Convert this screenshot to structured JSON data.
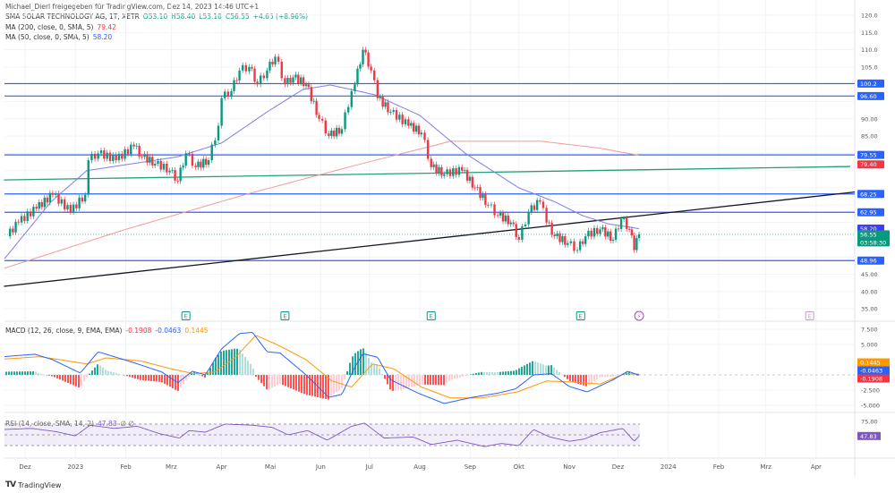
{
  "header": {
    "shared_by": "Michael_Dierl freigegeben für TradingView.com, Dez 14, 2023 14:46 UTC+1",
    "symbol": "SMA SOLAR TECHNOLOGY AG, 1T, XETR",
    "open": "O53.10",
    "high": "H58.40",
    "low": "L53.10",
    "close": "C56.55",
    "change": "+4.65 (+8.96%)",
    "ma200_label": "MA (200, close, 0, SMA, 5)",
    "ma200_value": "79.42",
    "ma50_label": "MA (50, close, 0, SMA, 5)",
    "ma50_value": "58.20"
  },
  "macd_legend": {
    "label": "MACD (12, 26, close, 9, EMA, EMA)",
    "hist": "-0.1908",
    "macd": "-0.0463",
    "signal": "0.1445"
  },
  "rsi_legend": {
    "label": "RSI (14, close, SMA, 14, 2)",
    "value": "47.83",
    "extra": "∅ ∅"
  },
  "footer": {
    "brand": "TradingView",
    "logo": "TV"
  },
  "colors": {
    "up": "#089981",
    "down": "#f23645",
    "ma50": "#7e7ee8",
    "ma200": "#f09a9a",
    "hline": "#2962ff",
    "trend_green": "#22a07a",
    "trend_black": "#131722",
    "macd": "#2962ff",
    "signal": "#ff9800",
    "rsi": "#7e57c2"
  },
  "chart_data": [
    {
      "type": "candlestick",
      "title": "SMA SOLAR TECHNOLOGY AG, 1T, XETR",
      "ylim": [
        35,
        120
      ],
      "yticks": [
        "120.0",
        "115.0",
        "110.0",
        "105.0",
        "100.0",
        "95.00",
        "90.00",
        "85.00",
        "80.00",
        "75.00",
        "70.00",
        "65.00",
        "60.00",
        "55.00",
        "50.00",
        "45.00",
        "40.00",
        "35.00"
      ],
      "xticks": [
        {
          "label": "Dez",
          "date": "2022-12-01"
        },
        {
          "label": "2023",
          "date": "2023-01-01"
        },
        {
          "label": "Feb",
          "date": "2023-02-01"
        },
        {
          "label": "Mrz",
          "date": "2023-03-01"
        },
        {
          "label": "Apr",
          "date": "2023-04-01"
        },
        {
          "label": "Mai",
          "date": "2023-05-01"
        },
        {
          "label": "Jun",
          "date": "2023-06-01"
        },
        {
          "label": "Jul",
          "date": "2023-07-01"
        },
        {
          "label": "Aug",
          "date": "2023-08-01"
        },
        {
          "label": "Sep",
          "date": "2023-09-01"
        },
        {
          "label": "Okt",
          "date": "2023-10-01"
        },
        {
          "label": "Nov",
          "date": "2023-11-01"
        },
        {
          "label": "Dez",
          "date": "2023-12-01"
        },
        {
          "label": "2024",
          "date": "2024-01-01"
        },
        {
          "label": "Feb",
          "date": "2024-02-01"
        },
        {
          "label": "Mrz",
          "date": "2024-03-01"
        },
        {
          "label": "Apr",
          "date": "2024-04-01"
        }
      ],
      "close": [
        [
          "2022-11-20",
          56
        ],
        [
          "2022-11-27",
          60
        ],
        [
          "2022-12-08",
          64
        ],
        [
          "2022-12-18",
          68
        ],
        [
          "2022-12-29",
          63
        ],
        [
          "2023-01-07",
          68
        ],
        [
          "2023-01-09",
          78
        ],
        [
          "2023-01-15",
          80
        ],
        [
          "2023-01-26",
          78
        ],
        [
          "2023-02-06",
          82
        ],
        [
          "2023-02-11",
          79
        ],
        [
          "2023-02-19",
          77
        ],
        [
          "2023-02-28",
          75
        ],
        [
          "2023-03-05",
          72
        ],
        [
          "2023-03-10",
          80
        ],
        [
          "2023-03-16",
          76
        ],
        [
          "2023-03-24",
          78
        ],
        [
          "2023-03-30",
          88
        ],
        [
          "2023-04-01",
          96
        ],
        [
          "2023-04-07",
          98
        ],
        [
          "2023-04-12",
          104
        ],
        [
          "2023-04-18",
          105
        ],
        [
          "2023-04-23",
          100
        ],
        [
          "2023-04-29",
          104
        ],
        [
          "2023-05-04",
          108
        ],
        [
          "2023-05-10",
          100
        ],
        [
          "2023-05-15",
          102
        ],
        [
          "2023-05-23",
          100
        ],
        [
          "2023-05-31",
          90
        ],
        [
          "2023-06-06",
          85
        ],
        [
          "2023-06-14",
          87
        ],
        [
          "2023-06-20",
          98
        ],
        [
          "2023-06-22",
          100
        ],
        [
          "2023-06-27",
          110
        ],
        [
          "2023-07-02",
          104
        ],
        [
          "2023-07-06",
          96
        ],
        [
          "2023-07-14",
          92
        ],
        [
          "2023-07-25",
          88
        ],
        [
          "2023-08-02",
          86
        ],
        [
          "2023-08-08",
          76
        ],
        [
          "2023-08-16",
          74
        ],
        [
          "2023-08-27",
          75
        ],
        [
          "2023-09-04",
          70
        ],
        [
          "2023-09-12",
          65
        ],
        [
          "2023-09-18",
          62
        ],
        [
          "2023-09-26",
          60
        ],
        [
          "2023-10-01",
          55
        ],
        [
          "2023-10-07",
          63
        ],
        [
          "2023-10-14",
          66
        ],
        [
          "2023-10-18",
          60
        ],
        [
          "2023-10-23",
          56
        ],
        [
          "2023-10-31",
          54
        ],
        [
          "2023-11-06",
          52
        ],
        [
          "2023-11-11",
          56
        ],
        [
          "2023-11-20",
          58
        ],
        [
          "2023-11-28",
          55
        ],
        [
          "2023-12-03",
          61
        ],
        [
          "2023-12-08",
          58
        ],
        [
          "2023-12-11",
          52
        ],
        [
          "2023-12-14",
          56.55
        ]
      ],
      "ma200": [
        [
          "2022-11-18",
          46.7
        ],
        [
          "2023-02-01",
          58
        ],
        [
          "2023-04-15",
          68
        ],
        [
          "2023-06-22",
          76.5
        ],
        [
          "2023-08-20",
          83.5
        ],
        [
          "2023-10-15",
          83.5
        ],
        [
          "2023-11-20",
          81.5
        ],
        [
          "2023-12-14",
          79.4
        ]
      ],
      "ma50": [
        [
          "2022-11-18",
          49.3
        ],
        [
          "2022-12-17",
          66
        ],
        [
          "2023-01-08",
          75
        ],
        [
          "2023-03-05",
          79
        ],
        [
          "2023-04-01",
          83
        ],
        [
          "2023-04-29",
          92
        ],
        [
          "2023-05-21",
          98.5
        ],
        [
          "2023-06-07",
          99.8
        ],
        [
          "2023-07-04",
          97
        ],
        [
          "2023-08-01",
          91
        ],
        [
          "2023-08-29",
          80
        ],
        [
          "2023-10-01",
          70
        ],
        [
          "2023-10-23",
          66
        ],
        [
          "2023-11-09",
          62
        ],
        [
          "2023-11-25",
          59.6
        ],
        [
          "2023-12-14",
          58.2
        ]
      ],
      "horizontal_levels": [
        "100.2",
        "96.60",
        "79.55",
        "68.25",
        "62.95",
        "48.96"
      ],
      "trendlines": [
        {
          "color": "green",
          "from": [
            "2022-11-18",
            72.3
          ],
          "to": [
            "2024-04-22",
            76.2
          ]
        },
        {
          "color": "black",
          "from": [
            "2022-11-18",
            41.5
          ],
          "to": [
            "2024-05-08",
            69.5
          ]
        }
      ],
      "price_labels": [
        {
          "value": "100.2",
          "kind": "level"
        },
        {
          "value": "96.60",
          "kind": "level"
        },
        {
          "value": "79.55",
          "kind": "level"
        },
        {
          "value": "79.40",
          "kind": "ma200"
        },
        {
          "value": "68.25",
          "kind": "level"
        },
        {
          "value": "62.95",
          "kind": "level"
        },
        {
          "value": "58.20",
          "kind": "ma50"
        },
        {
          "value": "56.55",
          "kind": "last",
          "countdown": "03:58:30"
        },
        {
          "value": "48.96",
          "kind": "level"
        }
      ],
      "events": [
        {
          "type": "earnings",
          "label": "E",
          "date": "2023-03-10"
        },
        {
          "type": "earnings",
          "label": "E",
          "date": "2023-05-10"
        },
        {
          "type": "earnings",
          "label": "E",
          "date": "2023-08-08"
        },
        {
          "type": "earnings",
          "label": "E",
          "date": "2023-11-08"
        },
        {
          "type": "dividend",
          "label": "⚡",
          "date": "2023-12-14"
        },
        {
          "type": "earnings-future",
          "label": "E",
          "date": "2024-03-28"
        }
      ]
    },
    {
      "type": "line",
      "title": "MACD (12, 26, close, 9, EMA, EMA)",
      "ylim": [
        -6,
        8.5
      ],
      "yticks": [
        "7.500",
        "5.000",
        "-2.500",
        "-5.000"
      ],
      "macd": [
        [
          "2022-11-18",
          3.0
        ],
        [
          "2022-12-07",
          3.4
        ],
        [
          "2022-12-18",
          2.5
        ],
        [
          "2023-01-04",
          0.3
        ],
        [
          "2023-01-15",
          3.8
        ],
        [
          "2023-02-06",
          2.0
        ],
        [
          "2023-02-23",
          0.5
        ],
        [
          "2023-03-05",
          -1.3
        ],
        [
          "2023-03-14",
          0.6
        ],
        [
          "2023-03-22",
          0
        ],
        [
          "2023-04-01",
          4.3
        ],
        [
          "2023-04-12",
          6.8
        ],
        [
          "2023-04-20",
          7.0
        ],
        [
          "2023-04-29",
          3.8
        ],
        [
          "2023-05-07",
          3.6
        ],
        [
          "2023-05-23",
          0
        ],
        [
          "2023-06-06",
          -3.7
        ],
        [
          "2023-06-14",
          -3.2
        ],
        [
          "2023-06-22",
          1.3
        ],
        [
          "2023-06-27",
          3.5
        ],
        [
          "2023-07-06",
          2.9
        ],
        [
          "2023-07-14",
          -0.8
        ],
        [
          "2023-07-31",
          -3.0
        ],
        [
          "2023-08-16",
          -4.7
        ],
        [
          "2023-09-02",
          -3.7
        ],
        [
          "2023-09-18",
          -3.0
        ],
        [
          "2023-09-29",
          -2.3
        ],
        [
          "2023-10-10",
          0
        ],
        [
          "2023-10-21",
          0.2
        ],
        [
          "2023-11-01",
          -1.9
        ],
        [
          "2023-11-12",
          -2.8
        ],
        [
          "2023-11-28",
          -0.8
        ],
        [
          "2023-12-07",
          0.6
        ],
        [
          "2023-12-14",
          -0.0463
        ]
      ],
      "signal": [
        [
          "2022-11-18",
          2.6
        ],
        [
          "2022-12-10",
          3.0
        ],
        [
          "2022-12-25",
          2.4
        ],
        [
          "2023-01-08",
          1.8
        ],
        [
          "2023-01-20",
          2.8
        ],
        [
          "2023-02-10",
          2.3
        ],
        [
          "2023-03-01",
          1.0
        ],
        [
          "2023-03-15",
          0.2
        ],
        [
          "2023-03-28",
          0.5
        ],
        [
          "2023-04-10",
          3.0
        ],
        [
          "2023-04-22",
          6.5
        ],
        [
          "2023-05-05",
          5.0
        ],
        [
          "2023-05-23",
          2.5
        ],
        [
          "2023-06-08",
          -1.0
        ],
        [
          "2023-06-20",
          -2.0
        ],
        [
          "2023-07-03",
          1.8
        ],
        [
          "2023-07-16",
          1.0
        ],
        [
          "2023-08-02",
          -2.0
        ],
        [
          "2023-08-20",
          -3.8
        ],
        [
          "2023-09-08",
          -3.8
        ],
        [
          "2023-09-30",
          -2.8
        ],
        [
          "2023-10-18",
          -1.0
        ],
        [
          "2023-11-05",
          -1.2
        ],
        [
          "2023-11-20",
          -1.5
        ],
        [
          "2023-12-05",
          0.2
        ],
        [
          "2023-12-14",
          0.1445
        ]
      ],
      "labels": [
        {
          "value": "0.1445",
          "series": "signal"
        },
        {
          "value": "-0.0463",
          "series": "macd"
        },
        {
          "value": "-0.1908",
          "series": "histogram"
        }
      ]
    },
    {
      "type": "line",
      "title": "RSI (14, close, SMA, 14, 2)",
      "ylim": [
        20,
        80
      ],
      "yticks": [
        "75.00",
        "35.00"
      ],
      "bands": [
        70,
        50,
        30
      ],
      "rsi": [
        [
          "2022-11-18",
          60
        ],
        [
          "2022-12-05",
          62
        ],
        [
          "2022-12-20",
          56
        ],
        [
          "2023-01-01",
          48
        ],
        [
          "2023-01-10",
          68
        ],
        [
          "2023-01-25",
          62
        ],
        [
          "2023-02-08",
          66
        ],
        [
          "2023-02-22",
          52
        ],
        [
          "2023-03-06",
          44
        ],
        [
          "2023-03-12",
          58
        ],
        [
          "2023-03-22",
          55
        ],
        [
          "2023-04-03",
          70
        ],
        [
          "2023-04-20",
          68
        ],
        [
          "2023-05-02",
          64
        ],
        [
          "2023-05-12",
          50
        ],
        [
          "2023-05-24",
          58
        ],
        [
          "2023-06-05",
          40
        ],
        [
          "2023-06-20",
          66
        ],
        [
          "2023-06-28",
          72
        ],
        [
          "2023-07-10",
          44
        ],
        [
          "2023-07-28",
          46
        ],
        [
          "2023-08-08",
          32
        ],
        [
          "2023-08-24",
          40
        ],
        [
          "2023-09-10",
          28
        ],
        [
          "2023-09-20",
          34
        ],
        [
          "2023-10-01",
          30
        ],
        [
          "2023-10-10",
          60
        ],
        [
          "2023-10-20",
          46
        ],
        [
          "2023-11-01",
          38
        ],
        [
          "2023-11-10",
          42
        ],
        [
          "2023-11-20",
          54
        ],
        [
          "2023-12-04",
          62
        ],
        [
          "2023-12-11",
          38
        ],
        [
          "2023-12-14",
          47.83
        ]
      ],
      "labels": [
        {
          "value": "47.83"
        }
      ]
    }
  ]
}
